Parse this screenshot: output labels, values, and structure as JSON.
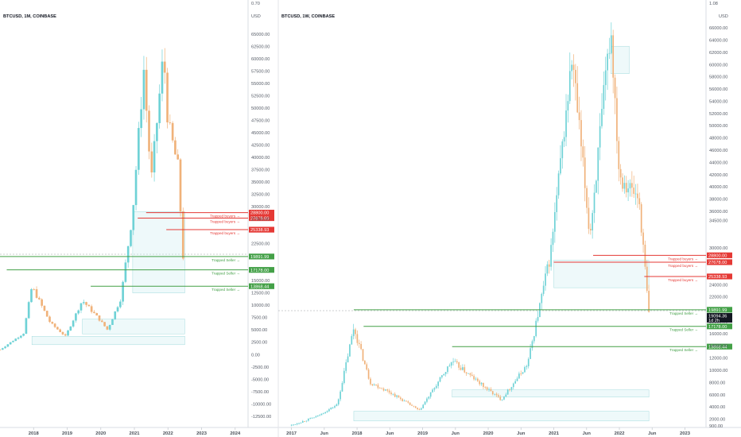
{
  "colors": {
    "up": "#6fd2d6",
    "down": "#f0b27a",
    "buyers": "#e53935",
    "sellers": "#43a047",
    "box": "#cdeef0",
    "axis": "#d9dde3",
    "crosshair": "#9aa0a6"
  },
  "panels": [
    {
      "symbol": "BTCUSD, 1M, COINBASE",
      "currency": "USD",
      "price_labels": [
        "0.70",
        "65000.00",
        "62500.00",
        "60000.00",
        "57500.00",
        "55000.00",
        "52500.00",
        "50000.00",
        "47500.00",
        "45000.00",
        "42500.00",
        "40000.00",
        "37500.00",
        "35000.00",
        "32500.00",
        "30000.00",
        "27500.00",
        "22500.00",
        "15000.00",
        "12500.00",
        "10000.00",
        "7500.00",
        "5000.00",
        "2500.00",
        "0.00",
        "-2500.00",
        "-5000.00",
        "-7500.00",
        "-10000.00",
        "-12500.00"
      ],
      "time_labels": [
        "2018",
        "2019",
        "2020",
        "2021",
        "2022",
        "2023",
        "2024"
      ],
      "levels": [
        {
          "label": "Trapped buyers",
          "value": "28800.00",
          "side": "buyers"
        },
        {
          "label": "Trapped buyers",
          "value": "27678.00",
          "side": "buyers"
        },
        {
          "label": "Trapped buyers",
          "value": "25338.93",
          "side": "buyers"
        },
        {
          "label": "Trapped Seller",
          "value": "19891.99",
          "side": "sellers"
        },
        {
          "label": "Trapped Seller",
          "value": "17178.00",
          "side": "sellers"
        },
        {
          "label": "Trapped Seller",
          "value": "13868.44",
          "side": "sellers"
        }
      ]
    },
    {
      "symbol": "BTCUSD, 1W, COINBASE",
      "currency": "USD",
      "price_labels": [
        "1.08",
        "66000.00",
        "64000.00",
        "62000.00",
        "60000.00",
        "58000.00",
        "56000.00",
        "54000.00",
        "52000.00",
        "50000.00",
        "48000.00",
        "46000.00",
        "44000.00",
        "42000.00",
        "40000.00",
        "38000.00",
        "36000.00",
        "34500.00",
        "30000.00",
        "24000.00",
        "22000.00",
        "18000.00",
        "16000.00",
        "14000.00",
        "12000.00",
        "10000.00",
        "8000.00",
        "6000.00",
        "4000.00",
        "2000.00",
        "900.00"
      ],
      "time_labels": [
        "2017",
        "Jun",
        "2018",
        "Jun",
        "2019",
        "Jun",
        "2020",
        "Jun",
        "2021",
        "Jun",
        "2022",
        "Jun",
        "2023"
      ],
      "current_price": "19094.36",
      "current_countdown": "1d 2h",
      "levels": [
        {
          "label": "Trapped buyers",
          "value": "28800.00",
          "side": "buyers"
        },
        {
          "label": "Trapped buyers",
          "value": "27678.00",
          "side": "buyers"
        },
        {
          "label": "Trapped buyers",
          "value": "25338.93",
          "side": "buyers"
        },
        {
          "label": "Trapped Seller",
          "value": "19891.99",
          "side": "sellers"
        },
        {
          "label": "Trapped Seller",
          "value": "17178.00",
          "side": "sellers"
        },
        {
          "label": "Trapped Seller",
          "value": "13868.44",
          "side": "sellers"
        }
      ]
    }
  ],
  "chart_data": [
    {
      "type": "candlestick",
      "title": "BTCUSD, 1M, COINBASE",
      "ylabel": "USD",
      "ylim": [
        -13500,
        70000
      ],
      "xlim": [
        2017.0,
        2024.1
      ],
      "series": [
        {
          "x": [
            2017.0,
            2017.7,
            2017.95,
            2018.5,
            2018.95,
            2019.45,
            2019.95,
            2020.2,
            2020.6,
            2020.95,
            2021.28,
            2021.5,
            2021.87,
            2022.0,
            2022.3,
            2022.45
          ],
          "y": [
            1000,
            4300,
            13800,
            6400,
            3700,
            11000,
            7200,
            5000,
            11500,
            29000,
            58000,
            35000,
            61300,
            47000,
            38000,
            19900
          ]
        }
      ],
      "levels": [
        28800,
        27678,
        25338.93,
        19891.99,
        17178,
        13868.44
      ]
    },
    {
      "type": "candlestick",
      "title": "BTCUSD, 1W, COINBASE",
      "ylabel": "USD",
      "ylim": [
        900,
        69000
      ],
      "xlim": [
        2016.92,
        2023.2
      ],
      "series": [
        {
          "x": [
            2017.0,
            2017.4,
            2017.7,
            2017.95,
            2018.2,
            2018.5,
            2018.95,
            2019.45,
            2019.95,
            2020.2,
            2020.6,
            2020.95,
            2021.28,
            2021.55,
            2021.87,
            2022.0,
            2022.3,
            2022.45
          ],
          "y": [
            1000,
            2500,
            4400,
            17000,
            8000,
            6400,
            3400,
            11500,
            7200,
            5200,
            11000,
            29000,
            61000,
            32000,
            66000,
            42000,
            38000,
            19094.36
          ]
        }
      ],
      "levels": [
        28800,
        27678,
        25338.93,
        19891.99,
        17178,
        13868.44
      ],
      "current_price": 19094.36
    }
  ]
}
